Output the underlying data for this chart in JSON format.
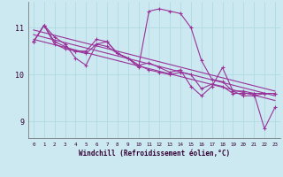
{
  "xlabel": "Windchill (Refroidissement éolien,°C)",
  "bg_color": "#cce8f0",
  "line_color": "#993399",
  "grid_color": "#aad8e0",
  "hours": [
    0,
    1,
    2,
    3,
    4,
    5,
    6,
    7,
    8,
    9,
    10,
    11,
    12,
    13,
    14,
    15,
    16,
    17,
    18,
    19,
    20,
    21,
    22,
    23
  ],
  "series1": [
    10.7,
    11.05,
    10.65,
    10.55,
    10.5,
    10.45,
    10.65,
    10.6,
    10.45,
    10.35,
    10.2,
    10.1,
    10.05,
    10.0,
    10.05,
    10.0,
    9.7,
    9.8,
    9.75,
    9.6,
    9.6,
    9.6,
    9.6,
    9.6
  ],
  "series2": [
    10.7,
    11.05,
    10.8,
    10.65,
    10.35,
    10.2,
    10.65,
    10.7,
    10.45,
    10.35,
    10.15,
    11.35,
    11.4,
    11.35,
    11.3,
    11.0,
    10.3,
    9.9,
    9.85,
    9.65,
    9.65,
    9.6,
    8.85,
    9.3
  ],
  "series3": [
    10.7,
    11.05,
    10.7,
    10.6,
    10.5,
    10.5,
    10.75,
    10.7,
    10.45,
    10.35,
    10.2,
    10.25,
    10.15,
    10.05,
    10.1,
    9.75,
    9.55,
    9.75,
    10.15,
    9.65,
    9.55,
    9.55,
    9.6,
    9.6
  ],
  "trend_starts": [
    10.95,
    10.85,
    10.75
  ],
  "trend_ends": [
    9.65,
    9.55,
    9.45
  ],
  "ylim_min": 8.65,
  "ylim_max": 11.55,
  "yticks": [
    9,
    10,
    11
  ],
  "xlim_min": -0.5,
  "xlim_max": 23.5
}
